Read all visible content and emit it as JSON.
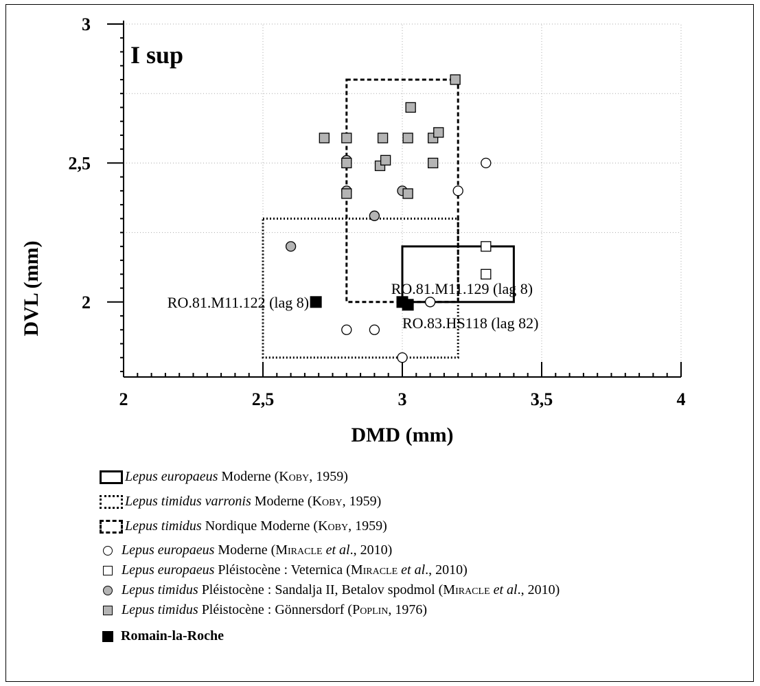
{
  "chart_data": {
    "type": "scatter",
    "panel_label": "I sup",
    "xlabel": "DMD (mm)",
    "ylabel": "DVL (mm)",
    "xlim": [
      2,
      4
    ],
    "ylim": [
      1.75,
      3
    ],
    "x_ticks": [
      "2",
      "2,5",
      "3",
      "3,5",
      "4"
    ],
    "y_ticks": [
      "2",
      "2,5",
      "3"
    ],
    "grid": true,
    "boxes": [
      {
        "id": "eur_koby",
        "x": [
          3.0,
          3.4
        ],
        "y": [
          2.0,
          2.2
        ],
        "style": "solid"
      },
      {
        "id": "varronis_koby",
        "x": [
          2.5,
          3.2
        ],
        "y": [
          1.8,
          2.3
        ],
        "style": "dotted"
      },
      {
        "id": "nordique_koby",
        "x": [
          2.8,
          3.2
        ],
        "y": [
          2.0,
          2.8
        ],
        "style": "dashed"
      }
    ],
    "series": [
      {
        "id": "eur_mod_miracle",
        "marker": "circle-open",
        "points": [
          [
            3.3,
            2.5
          ],
          [
            3.2,
            2.4
          ],
          [
            3.1,
            2.0
          ],
          [
            2.8,
            1.9
          ],
          [
            2.9,
            1.9
          ],
          [
            3.0,
            1.8
          ]
        ]
      },
      {
        "id": "eur_pleist_miracle",
        "marker": "square-open",
        "points": [
          [
            3.3,
            2.2
          ],
          [
            3.3,
            2.1
          ]
        ]
      },
      {
        "id": "tim_pleist_miracle",
        "marker": "circle-grey",
        "points": [
          [
            2.8,
            2.51
          ],
          [
            2.8,
            2.4
          ],
          [
            2.9,
            2.31
          ],
          [
            2.6,
            2.2
          ],
          [
            3.0,
            2.4
          ]
        ]
      },
      {
        "id": "tim_pleist_poplin",
        "marker": "square-grey",
        "points": [
          [
            2.72,
            2.59
          ],
          [
            2.8,
            2.59
          ],
          [
            2.8,
            2.5
          ],
          [
            2.8,
            2.39
          ],
          [
            2.92,
            2.49
          ],
          [
            2.94,
            2.51
          ],
          [
            2.93,
            2.59
          ],
          [
            3.02,
            2.59
          ],
          [
            3.03,
            2.7
          ],
          [
            3.11,
            2.59
          ],
          [
            3.13,
            2.61
          ],
          [
            3.11,
            2.5
          ],
          [
            3.02,
            2.39
          ],
          [
            3.19,
            2.8
          ]
        ]
      },
      {
        "id": "romain",
        "marker": "square-black",
        "points": [
          [
            2.69,
            2.0
          ],
          [
            3.0,
            2.0
          ],
          [
            3.02,
            1.99
          ]
        ]
      }
    ],
    "annotations": [
      {
        "text": "RO.81.M11.122 (lag 8)",
        "x": 2.69,
        "y": 2.0,
        "anchor": "end",
        "dx": -10,
        "dy": 0
      },
      {
        "text": "RO.81.M11.129 (lag 8)",
        "x": 2.96,
        "y": 2.0,
        "anchor": "start",
        "dx": 0,
        "dy": -20
      },
      {
        "text": "RO.83.HS118 (lag 82)",
        "x": 3.0,
        "y": 1.99,
        "anchor": "start",
        "dx": 0,
        "dy": 26
      }
    ]
  },
  "legend": {
    "items": [
      {
        "sym": "box-solid",
        "species": "Lepus europaeus",
        "rest": " Moderne (",
        "author": "Koby",
        "year": ", 1959)"
      },
      {
        "sym": "box-dotted",
        "species": "Lepus timidus varronis",
        "rest": " Moderne (",
        "author": "Koby",
        "year": ", 1959)"
      },
      {
        "sym": "box-dashed",
        "species": "Lepus timidus",
        "rest": " Nordique Moderne (",
        "author": "Koby",
        "year": ", 1959)"
      },
      {
        "sym": "circle-open",
        "species": "Lepus europaeus",
        "rest": " Moderne (",
        "author": "Miracle",
        "year": " et al., 2010)"
      },
      {
        "sym": "square-open",
        "species": "Lepus europaeus",
        "rest": " Pléistocène : Veternica (",
        "author": "Miracle",
        "year": " et al., 2010)"
      },
      {
        "sym": "circle-grey",
        "species": "Lepus timidus",
        "rest": " Pléistocène : Sandalja II, Betalov spodmol (",
        "author": "Miracle",
        "year": " et al., 2010)"
      },
      {
        "sym": "square-grey",
        "species": "Lepus timidus",
        "rest": " Pléistocène : Gönnersdorf (",
        "author": "Poplin",
        "year": ", 1976)"
      },
      {
        "sym": "square-black",
        "label": "Romain-la-Roche"
      }
    ]
  }
}
